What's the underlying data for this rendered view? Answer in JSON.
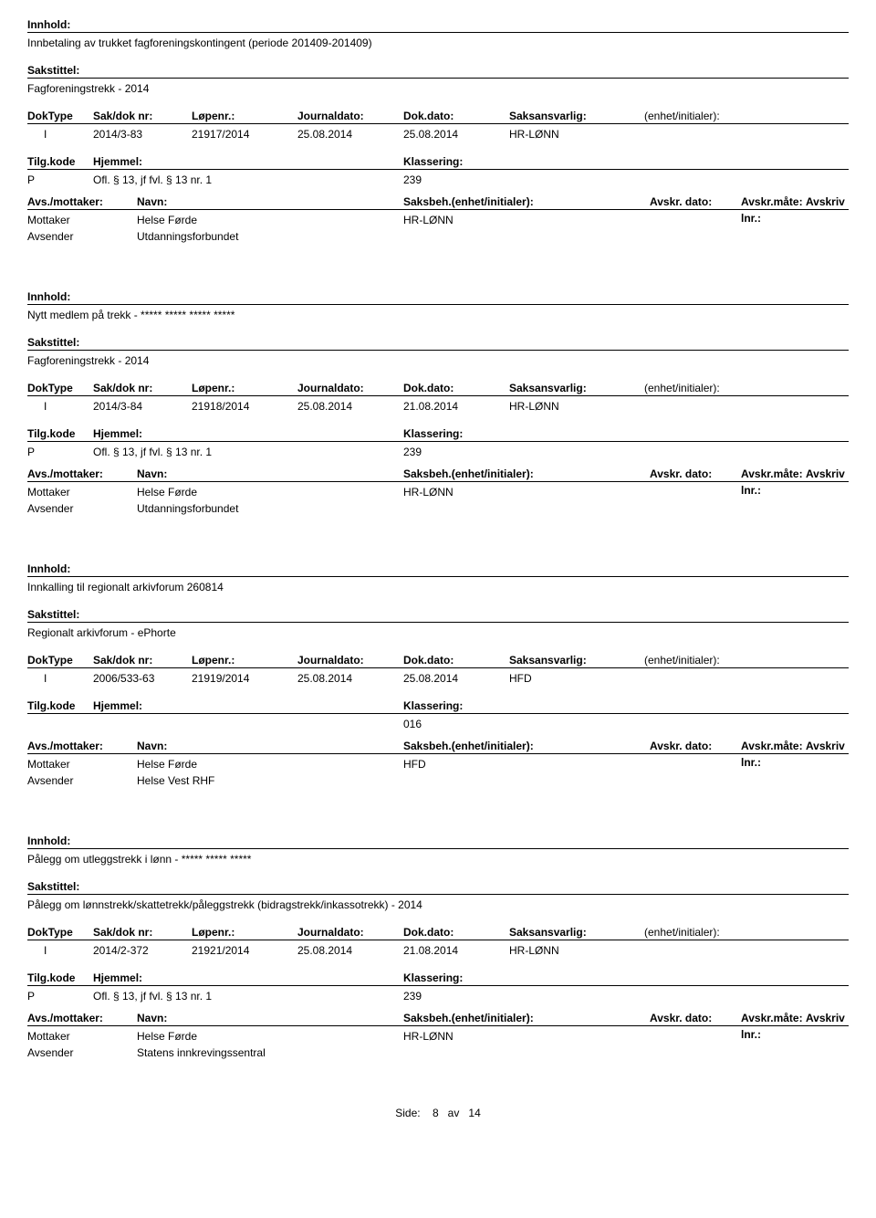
{
  "labels": {
    "innhold": "Innhold:",
    "sakstittel": "Sakstittel:",
    "doktype": "DokType",
    "sakdok": "Sak/dok nr:",
    "lopenr": "Løpenr.:",
    "journaldato": "Journaldato:",
    "dokdato": "Dok.dato:",
    "saksansvarlig": "Saksansvarlig:",
    "enhet": "(enhet/initialer):",
    "tilgkode": "Tilg.kode",
    "hjemmel": "Hjemmel:",
    "klassering": "Klassering:",
    "avsmottaker": "Avs./mottaker:",
    "navn": "Navn:",
    "saksbeh": "Saksbeh.(enhet/initialer):",
    "avskrdato": "Avskr. dato:",
    "avskrmate": "Avskr.måte:",
    "avskrivlnr": "Avskriv lnr.:",
    "mottaker": "Mottaker",
    "avsender": "Avsender"
  },
  "records": [
    {
      "innhold": "Innbetaling av trukket fagforeningskontingent (periode 201409-201409)",
      "sakstittel": "Fagforeningstrekk - 2014",
      "doktype": "I",
      "sakdok": "2014/3-83",
      "lopenr": "21917/2014",
      "journaldato": "25.08.2014",
      "dokdato": "25.08.2014",
      "saksansvarlig": "HR-LØNN",
      "tilgkode": "P",
      "hjemmel": "Ofl. § 13, jf fvl. § 13 nr. 1",
      "klassering": "239",
      "mottaker_navn": "Helse Førde",
      "mottaker_beh": "HR-LØNN",
      "avsender_navn": "Utdanningsforbundet"
    },
    {
      "innhold": "Nytt medlem på trekk - ***** ***** ***** *****",
      "sakstittel": "Fagforeningstrekk - 2014",
      "doktype": "I",
      "sakdok": "2014/3-84",
      "lopenr": "21918/2014",
      "journaldato": "25.08.2014",
      "dokdato": "21.08.2014",
      "saksansvarlig": "HR-LØNN",
      "tilgkode": "P",
      "hjemmel": "Ofl. § 13, jf fvl. § 13 nr. 1",
      "klassering": "239",
      "mottaker_navn": "Helse Førde",
      "mottaker_beh": "HR-LØNN",
      "avsender_navn": "Utdanningsforbundet"
    },
    {
      "innhold": "Innkalling til regionalt arkivforum 260814",
      "sakstittel": "Regionalt arkivforum - ePhorte",
      "doktype": "I",
      "sakdok": "2006/533-63",
      "lopenr": "21919/2014",
      "journaldato": "25.08.2014",
      "dokdato": "25.08.2014",
      "saksansvarlig": "HFD",
      "tilgkode": "",
      "hjemmel": "",
      "klassering": "016",
      "mottaker_navn": "Helse Førde",
      "mottaker_beh": "HFD",
      "avsender_navn": "Helse Vest RHF"
    },
    {
      "innhold": "Pålegg om utleggstrekk i lønn - ***** ***** *****",
      "sakstittel": "Pålegg om lønnstrekk/skattetrekk/påleggstrekk (bidragstrekk/inkassotrekk) - 2014",
      "doktype": "I",
      "sakdok": "2014/2-372",
      "lopenr": "21921/2014",
      "journaldato": "25.08.2014",
      "dokdato": "21.08.2014",
      "saksansvarlig": "HR-LØNN",
      "tilgkode": "P",
      "hjemmel": "Ofl. § 13, jf fvl. § 13 nr. 1",
      "klassering": "239",
      "mottaker_navn": "Helse Førde",
      "mottaker_beh": "HR-LØNN",
      "avsender_navn": "Statens innkrevingssentral"
    }
  ],
  "footer": {
    "side": "Side:",
    "page": "8",
    "av": "av",
    "total": "14"
  }
}
